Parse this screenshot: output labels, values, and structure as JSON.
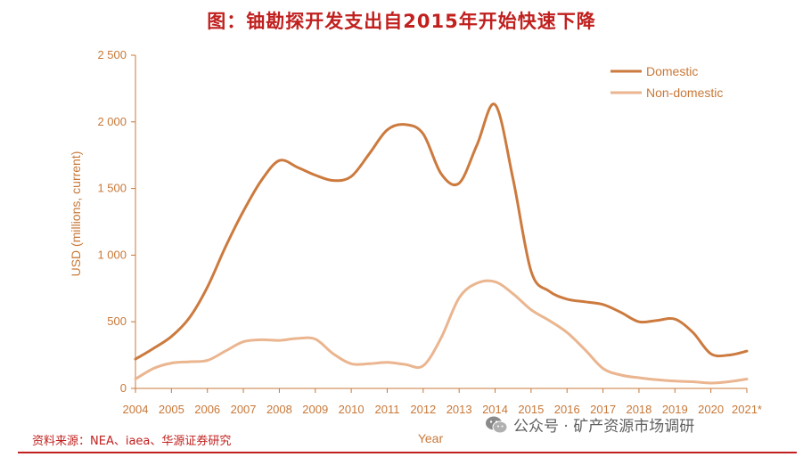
{
  "title": "图：铀勘探开发支出自2015年开始快速下降",
  "source": "资料来源：NEA、iaea、华源证券研究",
  "watermark": "公众号 · 矿产资源市场调研",
  "colors": {
    "domestic": "#cc7a3e",
    "non_domestic": "#eab58f",
    "text": "#c87838",
    "title": "#c0201e"
  },
  "chart_data": {
    "type": "line",
    "title": "",
    "xlabel": "Year",
    "ylabel": "USD (millions, current)",
    "x": [
      2004,
      2004.5,
      2005,
      2005.5,
      2006,
      2006.5,
      2007,
      2007.5,
      2008,
      2008.5,
      2009,
      2009.5,
      2010,
      2010.5,
      2011,
      2011.5,
      2012,
      2012.5,
      2013,
      2013.5,
      2014,
      2014.5,
      2015,
      2015.5,
      2016,
      2016.5,
      2017,
      2017.5,
      2018,
      2018.5,
      2019,
      2019.5,
      2020,
      2020.5,
      2021
    ],
    "x_tick_labels": [
      "2004",
      "2005",
      "2006",
      "2007",
      "2008",
      "2009",
      "2010",
      "2011",
      "2012",
      "2013",
      "2014",
      "2015",
      "2016",
      "2017",
      "2018",
      "2019",
      "2020",
      "2021*"
    ],
    "y_tick_labels": [
      "0",
      "500",
      "1 000",
      "1 500",
      "2 000",
      "2 500"
    ],
    "ylim": [
      0,
      2500
    ],
    "legend_position": "top-right",
    "series": [
      {
        "name": "Domestic",
        "values": [
          220,
          300,
          390,
          530,
          760,
          1060,
          1330,
          1560,
          1710,
          1660,
          1600,
          1560,
          1590,
          1760,
          1940,
          1980,
          1910,
          1610,
          1540,
          1830,
          2130,
          1570,
          880,
          730,
          670,
          650,
          630,
          570,
          500,
          510,
          520,
          420,
          260,
          250,
          280
        ]
      },
      {
        "name": "Non-domestic",
        "values": [
          70,
          150,
          190,
          200,
          210,
          280,
          350,
          365,
          360,
          375,
          370,
          260,
          185,
          185,
          195,
          180,
          170,
          380,
          680,
          790,
          800,
          710,
          590,
          510,
          420,
          290,
          150,
          100,
          80,
          65,
          55,
          50,
          40,
          50,
          70
        ]
      }
    ]
  }
}
